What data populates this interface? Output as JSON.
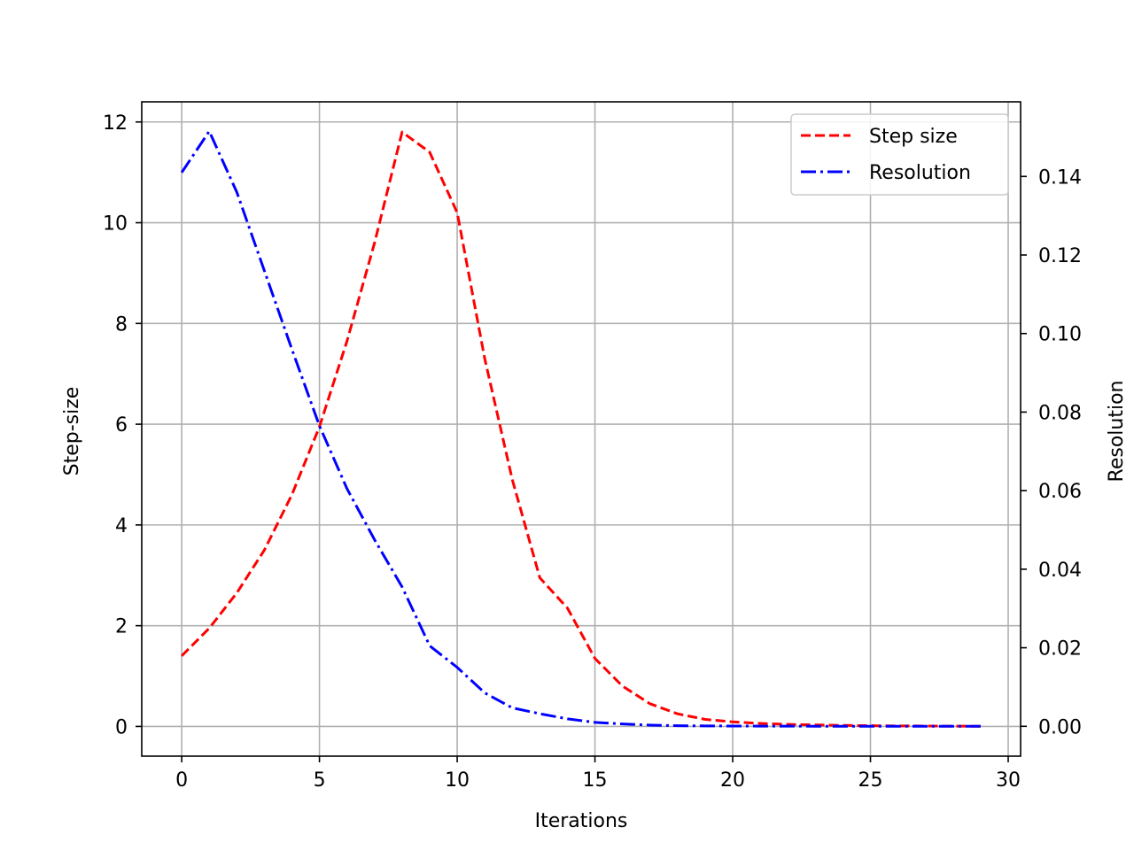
{
  "chart_data": {
    "type": "line",
    "title": "",
    "xlabel": "Iterations",
    "ylabel": "Step-size",
    "y2label": "Resolution",
    "xlim": [
      -1.45,
      30.45
    ],
    "ylim": [
      -0.59,
      12.4
    ],
    "y2lim": [
      -0.0076,
      0.159
    ],
    "xticks": [
      0,
      5,
      10,
      15,
      20,
      25,
      30
    ],
    "yticks": [
      0,
      2,
      4,
      6,
      8,
      10,
      12
    ],
    "y2ticks": [
      0.0,
      0.02,
      0.04,
      0.06,
      0.08,
      0.1,
      0.12,
      0.14
    ],
    "grid": true,
    "legend_position": "top-right",
    "x": [
      0,
      1,
      2,
      3,
      4,
      5,
      6,
      7,
      8,
      9,
      10,
      11,
      12,
      13,
      14,
      15,
      16,
      17,
      18,
      19,
      20,
      21,
      22,
      23,
      24,
      25,
      26,
      27,
      28,
      29
    ],
    "series": [
      {
        "name": "Step size",
        "axis": "left",
        "color": "#ff0000",
        "style": "dashed",
        "values": [
          1.4,
          1.95,
          2.65,
          3.5,
          4.6,
          5.95,
          7.65,
          9.6,
          11.8,
          11.4,
          10.2,
          7.3,
          4.9,
          2.95,
          2.35,
          1.35,
          0.8,
          0.45,
          0.25,
          0.14,
          0.09,
          0.06,
          0.04,
          0.03,
          0.02,
          0.015,
          0.01,
          0.008,
          0.005,
          0.004
        ]
      },
      {
        "name": "Resolution",
        "axis": "right",
        "color": "#0000ff",
        "style": "dashdot",
        "values": [
          0.141,
          0.1515,
          0.136,
          0.116,
          0.096,
          0.0765,
          0.0605,
          0.0475,
          0.0355,
          0.0205,
          0.015,
          0.0085,
          0.0047,
          0.0032,
          0.0019,
          0.001,
          0.0006,
          0.0003,
          0.00015,
          0.0001,
          7e-05,
          5e-05,
          3e-05,
          2e-05,
          1e-05,
          1e-05,
          0.0,
          0.0,
          0.0,
          0.0
        ]
      }
    ]
  }
}
